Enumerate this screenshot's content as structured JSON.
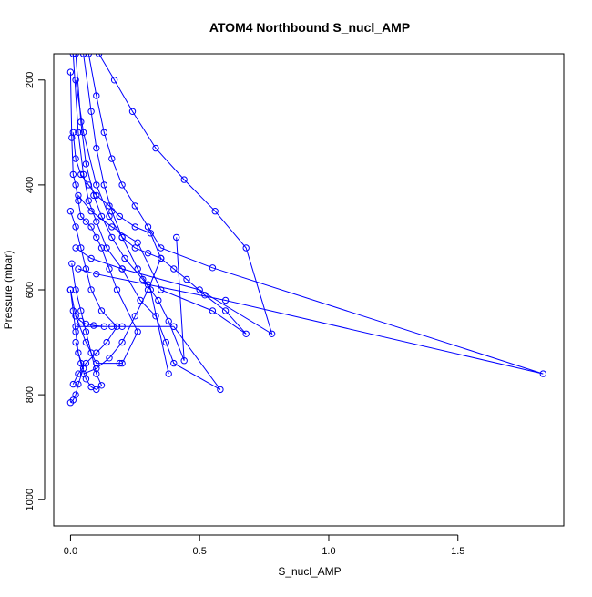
{
  "chart_data": {
    "type": "line",
    "title": "ATOM4 Northbound S_nucl_AMP",
    "xlabel": "S_nucl_AMP",
    "ylabel": "Pressure (mbar)",
    "xlim": [
      -0.065,
      1.91
    ],
    "ylim": [
      1050,
      150
    ],
    "y_reversed": true,
    "x_ticks": [
      0.0,
      0.5,
      1.0,
      1.5
    ],
    "x_tick_labels": [
      "0.0",
      "0.5",
      "1.0",
      "1.5"
    ],
    "y_ticks": [
      200,
      400,
      600,
      800,
      1000
    ],
    "y_tick_labels": [
      "200",
      "400",
      "600",
      "800",
      "1000"
    ],
    "marker": "open-circle",
    "series_color": "#0000ff",
    "grid": false,
    "legend": "none",
    "note": "values estimated visually; many overlapping profile segments",
    "series": [
      {
        "x": [
          0.0,
          0.005,
          0.01,
          0.02,
          0.03,
          0.04,
          0.06,
          0.08,
          0.1,
          0.12,
          0.15,
          0.18,
          0.26,
          0.2,
          0.19,
          0.1,
          0.06,
          0.02,
          0.0
        ],
        "y": [
          185,
          310,
          380,
          400,
          430,
          460,
          470,
          480,
          500,
          520,
          560,
          600,
          680,
          740,
          740,
          740,
          700,
          650,
          600
        ]
      },
      {
        "x": [
          0.01,
          0.03,
          0.05,
          0.07,
          0.1,
          0.14,
          0.2,
          0.27,
          0.33,
          0.37,
          0.4,
          0.58,
          0.4
        ],
        "y": [
          150,
          300,
          380,
          430,
          470,
          520,
          560,
          620,
          650,
          700,
          740,
          790,
          670
        ]
      },
      {
        "x": [
          0.02,
          0.04,
          0.06,
          0.09,
          0.12,
          0.16,
          0.21,
          0.28,
          0.34,
          0.38,
          0.44,
          0.41
        ],
        "y": [
          150,
          280,
          360,
          420,
          460,
          500,
          540,
          580,
          620,
          660,
          735,
          500
        ]
      },
      {
        "x": [
          0.05,
          0.08,
          0.1,
          0.13,
          0.16,
          0.2,
          0.26,
          0.31,
          0.38
        ],
        "y": [
          150,
          260,
          330,
          400,
          450,
          500,
          560,
          600,
          760
        ]
      },
      {
        "x": [
          0.07,
          0.1,
          0.13,
          0.16,
          0.2,
          0.25,
          0.3,
          0.35,
          0.55,
          1.83,
          0.6,
          0.3,
          0.1,
          0.03
        ],
        "y": [
          150,
          230,
          300,
          350,
          400,
          440,
          480,
          520,
          558,
          760,
          620,
          590,
          570,
          560
        ]
      },
      {
        "x": [
          0.11,
          0.17,
          0.24,
          0.33,
          0.44,
          0.56,
          0.68,
          0.78,
          0.5,
          0.2,
          0.08,
          0.02
        ],
        "y": [
          150,
          200,
          260,
          330,
          390,
          450,
          520,
          684,
          600,
          560,
          540,
          520
        ]
      },
      {
        "x": [
          0.02,
          0.05,
          0.1,
          0.15,
          0.2,
          0.25,
          0.3,
          0.35,
          0.4,
          0.45,
          0.52,
          0.6,
          0.68,
          0.55,
          0.35,
          0.26,
          0.16,
          0.08,
          0.03
        ],
        "y": [
          200,
          300,
          400,
          460,
          500,
          520,
          530,
          540,
          560,
          580,
          610,
          640,
          684,
          640,
          600,
          510,
          480,
          450,
          420
        ]
      },
      {
        "x": [
          0.0,
          0.02,
          0.04,
          0.06,
          0.08,
          0.12,
          0.18,
          0.14,
          0.1,
          0.06,
          0.03,
          0.01
        ],
        "y": [
          450,
          480,
          520,
          560,
          600,
          640,
          670,
          700,
          720,
          740,
          760,
          780
        ]
      },
      {
        "x": [
          0.005,
          0.02,
          0.04,
          0.06,
          0.08,
          0.1,
          0.12,
          0.1,
          0.08,
          0.06,
          0.04,
          0.02
        ],
        "y": [
          550,
          600,
          640,
          680,
          720,
          760,
          782,
          790,
          785,
          770,
          740,
          700
        ]
      },
      {
        "x": [
          0.01,
          0.02,
          0.04,
          0.07,
          0.1,
          0.15,
          0.19,
          0.25,
          0.31,
          0.35,
          0.3,
          0.25,
          0.2,
          0.15,
          0.1,
          0.05
        ],
        "y": [
          300,
          350,
          380,
          400,
          420,
          440,
          460,
          480,
          492,
          540,
          600,
          650,
          700,
          730,
          750,
          760
        ]
      },
      {
        "x": [
          0.0,
          0.01,
          0.02,
          0.03,
          0.05,
          0.03,
          0.02,
          0.01,
          0.0
        ],
        "y": [
          600,
          640,
          680,
          720,
          750,
          780,
          800,
          810,
          815
        ]
      },
      {
        "x": [
          0.02,
          0.04,
          0.06,
          0.09,
          0.13,
          0.16,
          0.2,
          0.4,
          0.02
        ],
        "y": [
          650,
          660,
          665,
          668,
          670,
          670,
          670,
          670,
          670
        ]
      }
    ]
  }
}
